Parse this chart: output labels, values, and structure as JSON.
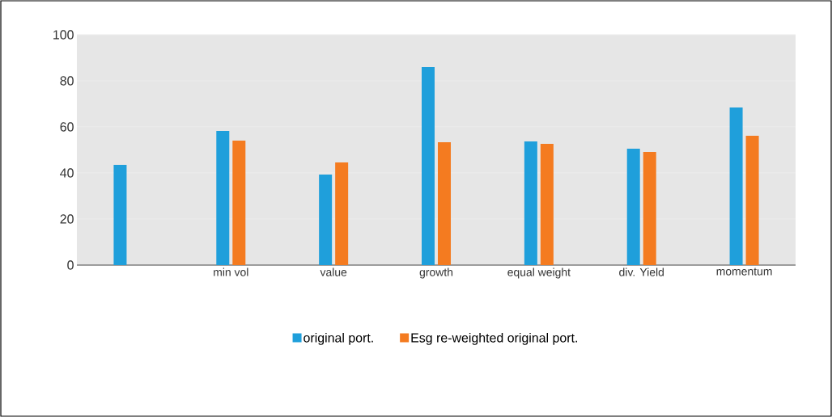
{
  "chart_data": {
    "type": "bar",
    "categories": [
      null,
      "min vol",
      "value",
      "growth",
      "equal weight",
      "div. Yield",
      "momentum"
    ],
    "series": [
      {
        "name": "original port.",
        "color": "#1f9fdb",
        "values": [
          43.5,
          58.2,
          39.3,
          86,
          53.7,
          50.5,
          68.4
        ]
      },
      {
        "name": "Esg re-weighted original port.",
        "color": "#f47b20",
        "values": [
          null,
          54,
          44.6,
          53.3,
          52.6,
          49.1,
          56.1
        ]
      }
    ],
    "ylim": [
      0,
      100
    ],
    "yticks": [
      0,
      20,
      40,
      60,
      80,
      100
    ],
    "grid": "y",
    "legend": "bottom"
  }
}
